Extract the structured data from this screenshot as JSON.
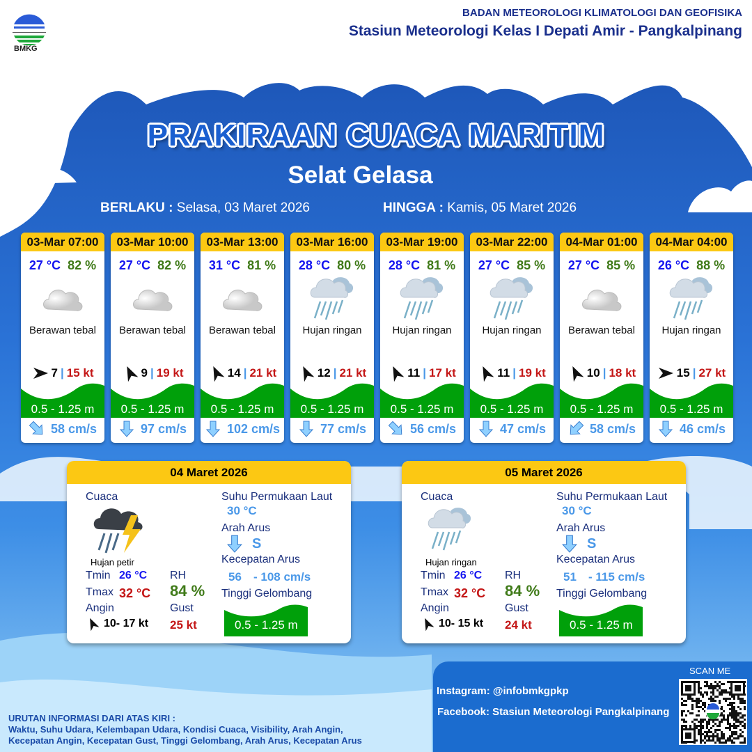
{
  "header": {
    "logo_text": "BMKG",
    "agency": "BADAN METEOROLOGI KLIMATOLOGI DAN GEOFISIKA",
    "station": "Stasiun Meteorologi Kelas I Depati Amir - Pangkalpinang"
  },
  "title": "PRAKIRAAN CUACA MARITIM",
  "area": "Selat Gelasa",
  "period": {
    "from_label": "BERLAKU :",
    "from": "Selasa, 03 Maret 2026",
    "to_label": "HINGGA :",
    "to": "Kamis, 05 Maret 2026"
  },
  "colors": {
    "header_yellow": "#fcc813",
    "wave_green": "#00a00a",
    "temp_blue": "#1515f0",
    "rh_green": "#3f7a18",
    "gust_red": "#c41717",
    "current_blue": "#4a98e8"
  },
  "forecasts": [
    {
      "time": "03-Mar 07:00",
      "temp": "27 °C",
      "rh": "82 %",
      "icon": "cloudy-icon",
      "condition": "Berawan tebal",
      "wind_dir": "E",
      "wind": "7",
      "gust": "15 kt",
      "wave": "0.5 - 1.25 m",
      "current_dir": "SE",
      "current": "58 cm/s"
    },
    {
      "time": "03-Mar 10:00",
      "temp": "27 °C",
      "rh": "82 %",
      "icon": "cloudy-icon",
      "condition": "Berawan tebal",
      "wind_dir": "NNW",
      "wind": "9",
      "gust": "19 kt",
      "wave": "0.5 - 1.25 m",
      "current_dir": "S",
      "current": "97 cm/s"
    },
    {
      "time": "03-Mar 13:00",
      "temp": "31 °C",
      "rh": "81 %",
      "icon": "cloudy-icon",
      "condition": "Berawan tebal",
      "wind_dir": "NNW",
      "wind": "14",
      "gust": "21 kt",
      "wave": "0.5 - 1.25 m",
      "current_dir": "S",
      "current": "102 cm/s"
    },
    {
      "time": "03-Mar 16:00",
      "temp": "28 °C",
      "rh": "80 %",
      "icon": "light-rain-icon",
      "condition": "Hujan ringan",
      "wind_dir": "NNW",
      "wind": "12",
      "gust": "21 kt",
      "wave": "0.5 - 1.25 m",
      "current_dir": "S",
      "current": "77 cm/s"
    },
    {
      "time": "03-Mar 19:00",
      "temp": "28 °C",
      "rh": "81 %",
      "icon": "light-rain-icon",
      "condition": "Hujan ringan",
      "wind_dir": "NNW",
      "wind": "11",
      "gust": "17 kt",
      "wave": "0.5 - 1.25 m",
      "current_dir": "SE",
      "current": "56 cm/s"
    },
    {
      "time": "03-Mar 22:00",
      "temp": "27 °C",
      "rh": "85 %",
      "icon": "light-rain-icon",
      "condition": "Hujan ringan",
      "wind_dir": "NNW",
      "wind": "11",
      "gust": "19 kt",
      "wave": "0.5 - 1.25 m",
      "current_dir": "S",
      "current": "47 cm/s"
    },
    {
      "time": "04-Mar 01:00",
      "temp": "27 °C",
      "rh": "85 %",
      "icon": "cloudy-icon",
      "condition": "Berawan tebal",
      "wind_dir": "NNW",
      "wind": "10",
      "gust": "18 kt",
      "wave": "0.5 - 1.25 m",
      "current_dir": "SW",
      "current": "58 cm/s"
    },
    {
      "time": "04-Mar 04:00",
      "temp": "26 °C",
      "rh": "88 %",
      "icon": "light-rain-icon",
      "condition": "Hujan ringan",
      "wind_dir": "E",
      "wind": "15",
      "gust": "27 kt",
      "wave": "0.5 - 1.25 m",
      "current_dir": "S",
      "current": "46 cm/s"
    }
  ],
  "days": [
    {
      "date": "04 Maret 2026",
      "cuaca_label": "Cuaca",
      "icon": "thunderstorm-icon",
      "condition": "Hujan petir",
      "tmin_label": "Tmin",
      "tmin": "26 °C",
      "tmax_label": "Tmax",
      "tmax": "32 °C",
      "rh_label": "RH",
      "rh": "84 %",
      "wind_label": "Angin",
      "wind": "10- 17 kt",
      "gust_label": "Gust",
      "gust": "25 kt",
      "sst_label": "Suhu Permukaan Laut",
      "sst": "30 °C",
      "cur_dir_label": "Arah Arus",
      "cur_dir": "S",
      "cur_speed_label": "Kecepatan Arus",
      "cur_min": "56",
      "cur_max": "- 108 cm/s",
      "wave_label": "Tinggi Gelombang",
      "wave": "0.5 - 1.25 m"
    },
    {
      "date": "05 Maret 2026",
      "cuaca_label": "Cuaca",
      "icon": "light-rain-icon",
      "condition": "Hujan ringan",
      "tmin_label": "Tmin",
      "tmin": "26 °C",
      "tmax_label": "Tmax",
      "tmax": "32 °C",
      "rh_label": "RH",
      "rh": "84 %",
      "wind_label": "Angin",
      "wind": "10- 15 kt",
      "gust_label": "Gust",
      "gust": "24 kt",
      "sst_label": "Suhu Permukaan Laut",
      "sst": "30 °C",
      "cur_dir_label": "Arah Arus",
      "cur_dir": "S",
      "cur_speed_label": "Kecepatan Arus",
      "cur_min": "51",
      "cur_max": "- 115 cm/s",
      "wave_label": "Tinggi Gelombang",
      "wave": "0.5 - 1.25 m"
    }
  ],
  "footer": {
    "legend_title": "URUTAN INFORMASI DARI ATAS KIRI :",
    "legend_line1": "Waktu, Suhu Udara, Kelembapan Udara, Kondisi Cuaca, Visibility, Arah Angin,",
    "legend_line2": "Kecepatan Angin, Kecepatan Gust, Tinggi Gelombang, Arah Arus, Kecepatan Arus",
    "instagram": "Instagram:  @infobmkgpkp",
    "facebook": "Facebook:  Stasiun  Meteorologi  Pangkalpinang",
    "scan_me": "SCAN ME"
  }
}
